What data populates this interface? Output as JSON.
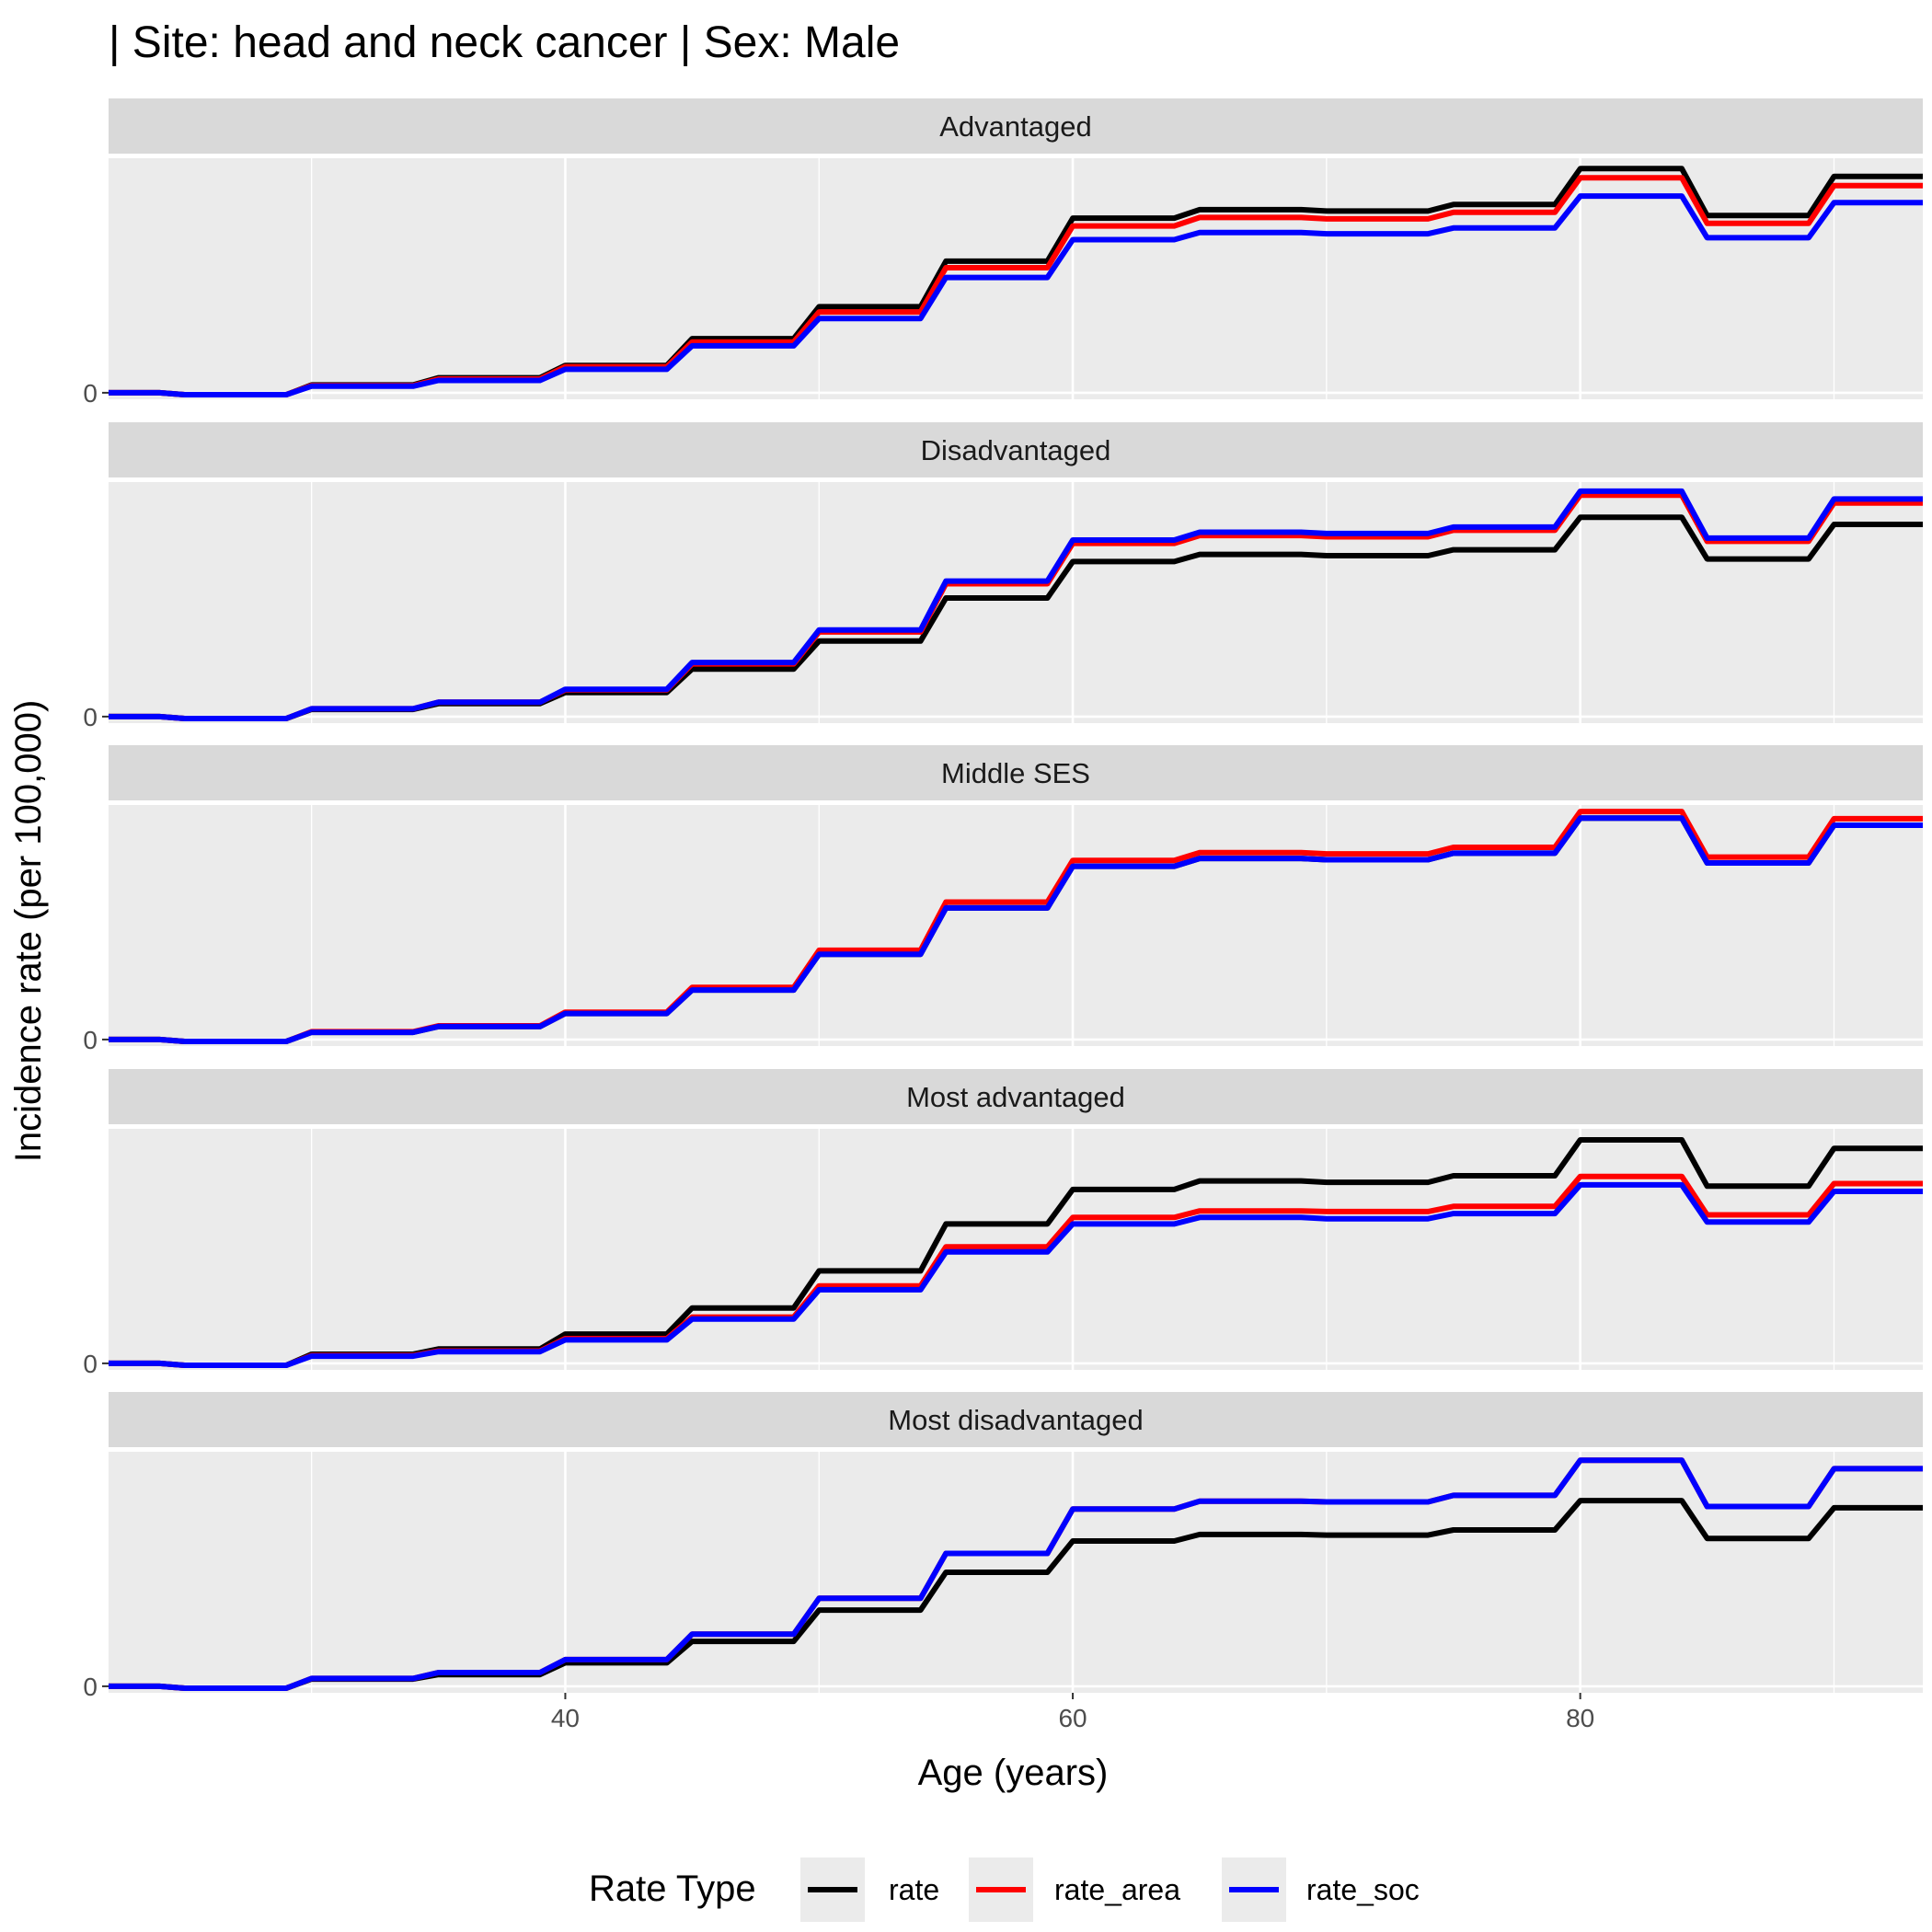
{
  "chart_data": {
    "type": "line",
    "title": "| Site: head and neck cancer | Sex: Male",
    "xlabel": "Age (years)",
    "ylabel": "Incidence rate (per 100,000)",
    "xlim": [
      22,
      93.5
    ],
    "x_ticks": [
      40,
      60,
      80
    ],
    "y_ticks": [
      0
    ],
    "y_tick_labels": [
      "0"
    ],
    "grid": true,
    "facet_layout": "stacked vertically, shared x-axis, free y-scales",
    "legend": {
      "title": "Rate Type",
      "position": "bottom",
      "entries": [
        {
          "label": "rate",
          "color": "#000000"
        },
        {
          "label": "rate_area",
          "color": "#ff0000"
        },
        {
          "label": "rate_soc",
          "color": "#0000ff"
        }
      ]
    },
    "x": [
      22,
      24,
      25,
      29,
      30,
      34,
      35,
      39,
      40,
      44,
      45,
      49,
      50,
      54,
      55,
      59,
      60,
      64,
      65,
      69,
      70,
      74,
      75,
      79,
      80,
      84,
      85,
      89,
      90,
      93.5
    ],
    "panels": [
      {
        "label": "Advantaged",
        "ylim": [
          -1,
          36
        ],
        "series": [
          {
            "name": "rate",
            "color": "#000000",
            "values": [
              0,
              0,
              -0.3,
              -0.3,
              1.2,
              1.2,
              2.3,
              2.3,
              4.2,
              4.2,
              8.3,
              8.3,
              13.2,
              13.2,
              20.2,
              20.2,
              26.8,
              26.8,
              28.1,
              28.1,
              27.9,
              27.9,
              28.9,
              28.9,
              34.4,
              34.4,
              27.2,
              27.2,
              33.2,
              33.2
            ]
          },
          {
            "name": "rate_area",
            "color": "#ff0000",
            "values": [
              0,
              0,
              -0.3,
              -0.3,
              1.1,
              1.1,
              2.1,
              2.1,
              4.0,
              4.0,
              7.8,
              7.8,
              12.4,
              12.4,
              19.2,
              19.2,
              25.6,
              25.6,
              26.9,
              26.9,
              26.7,
              26.7,
              27.7,
              27.7,
              33.0,
              33.0,
              26.0,
              26.0,
              31.8,
              31.8
            ]
          },
          {
            "name": "rate_soc",
            "color": "#0000ff",
            "values": [
              0,
              0,
              -0.3,
              -0.3,
              1.0,
              1.0,
              1.9,
              1.9,
              3.6,
              3.6,
              7.2,
              7.2,
              11.4,
              11.4,
              17.7,
              17.7,
              23.5,
              23.5,
              24.6,
              24.6,
              24.4,
              24.4,
              25.3,
              25.3,
              30.2,
              30.2,
              23.8,
              23.8,
              29.2,
              29.2
            ]
          }
        ]
      },
      {
        "label": "Disadvantaged",
        "ylim": [
          -1,
          36
        ],
        "series": [
          {
            "name": "rate",
            "color": "#000000",
            "values": [
              0,
              0,
              -0.3,
              -0.3,
              1.1,
              1.1,
              2.0,
              2.0,
              3.7,
              3.7,
              7.3,
              7.3,
              11.6,
              11.6,
              18.2,
              18.2,
              23.8,
              23.8,
              24.9,
              24.9,
              24.7,
              24.7,
              25.6,
              25.6,
              30.6,
              30.6,
              24.2,
              24.2,
              29.5,
              29.5
            ]
          },
          {
            "name": "rate_area",
            "color": "#ff0000",
            "values": [
              0,
              0,
              -0.3,
              -0.3,
              1.2,
              1.2,
              2.2,
              2.2,
              4.1,
              4.1,
              8.1,
              8.1,
              13.0,
              13.0,
              20.4,
              20.4,
              26.6,
              26.6,
              27.8,
              27.8,
              27.6,
              27.6,
              28.6,
              28.6,
              34.0,
              34.0,
              26.9,
              26.9,
              32.8,
              32.8
            ]
          },
          {
            "name": "rate_soc",
            "color": "#0000ff",
            "values": [
              0,
              0,
              -0.3,
              -0.3,
              1.2,
              1.2,
              2.2,
              2.2,
              4.2,
              4.2,
              8.3,
              8.3,
              13.3,
              13.3,
              20.8,
              20.8,
              27.1,
              27.1,
              28.3,
              28.3,
              28.1,
              28.1,
              29.1,
              29.1,
              34.6,
              34.6,
              27.4,
              27.4,
              33.4,
              33.4
            ]
          }
        ]
      },
      {
        "label": "Middle SES",
        "ylim": [
          -1,
          36
        ],
        "series": [
          {
            "name": "rate",
            "color": "#000000",
            "values": [
              0,
              0,
              -0.3,
              -0.3,
              1.1,
              1.1,
              2.0,
              2.0,
              4.0,
              4.0,
              7.6,
              7.6,
              13.1,
              13.1,
              20.2,
              20.2,
              26.6,
              26.6,
              27.8,
              27.8,
              27.6,
              27.6,
              28.6,
              28.6,
              34.0,
              34.0,
              27.1,
              27.1,
              32.9,
              32.9
            ]
          },
          {
            "name": "rate_area",
            "color": "#ff0000",
            "values": [
              0,
              0,
              -0.3,
              -0.3,
              1.2,
              1.2,
              2.1,
              2.1,
              4.2,
              4.2,
              8.0,
              8.0,
              13.7,
              13.7,
              21.1,
              21.1,
              27.5,
              27.5,
              28.7,
              28.7,
              28.5,
              28.5,
              29.5,
              29.5,
              35.0,
              35.0,
              28.0,
              28.0,
              33.9,
              33.9
            ]
          },
          {
            "name": "rate_soc",
            "color": "#0000ff",
            "values": [
              0,
              0,
              -0.3,
              -0.3,
              1.1,
              1.1,
              2.0,
              2.0,
              4.0,
              4.0,
              7.6,
              7.6,
              13.1,
              13.1,
              20.2,
              20.2,
              26.6,
              26.6,
              27.8,
              27.8,
              27.6,
              27.6,
              28.6,
              28.6,
              34.0,
              34.0,
              27.1,
              27.1,
              32.9,
              32.9
            ]
          }
        ]
      },
      {
        "label": "Most advantaged",
        "ylim": [
          -1,
          36
        ],
        "series": [
          {
            "name": "rate",
            "color": "#000000",
            "values": [
              0,
              0,
              -0.3,
              -0.3,
              1.4,
              1.4,
              2.2,
              2.2,
              4.5,
              4.5,
              8.5,
              8.5,
              14.2,
              14.2,
              21.4,
              21.4,
              26.7,
              26.7,
              28.0,
              28.0,
              27.8,
              27.8,
              28.8,
              28.8,
              34.3,
              34.3,
              27.2,
              27.2,
              33.0,
              33.0
            ]
          },
          {
            "name": "rate_area",
            "color": "#ff0000",
            "values": [
              0,
              0,
              -0.3,
              -0.3,
              1.2,
              1.2,
              1.9,
              1.9,
              3.8,
              3.8,
              7.1,
              7.1,
              11.9,
              11.9,
              17.9,
              17.9,
              22.4,
              22.4,
              23.4,
              23.4,
              23.3,
              23.3,
              24.1,
              24.1,
              28.7,
              28.7,
              22.8,
              22.8,
              27.6,
              27.6
            ]
          },
          {
            "name": "rate_soc",
            "color": "#0000ff",
            "values": [
              0,
              0,
              -0.3,
              -0.3,
              1.1,
              1.1,
              1.8,
              1.8,
              3.6,
              3.6,
              6.8,
              6.8,
              11.3,
              11.3,
              17.1,
              17.1,
              21.4,
              21.4,
              22.4,
              22.4,
              22.2,
              22.2,
              23.0,
              23.0,
              27.4,
              27.4,
              21.7,
              21.7,
              26.4,
              26.4
            ]
          }
        ]
      },
      {
        "label": "Most disadvantaged",
        "ylim": [
          -1,
          36
        ],
        "series": [
          {
            "name": "rate",
            "color": "#000000",
            "values": [
              0,
              0,
              -0.3,
              -0.3,
              1.1,
              1.1,
              1.8,
              1.8,
              3.6,
              3.6,
              6.9,
              6.9,
              11.7,
              11.7,
              17.5,
              17.5,
              22.3,
              22.3,
              23.3,
              23.3,
              23.2,
              23.2,
              24.0,
              24.0,
              28.5,
              28.5,
              22.7,
              22.7,
              27.4,
              27.4
            ]
          },
          {
            "name": "rate_area",
            "color": "#ff0000",
            "values": [
              0,
              0,
              -0.3,
              -0.3,
              1.2,
              1.2,
              2.1,
              2.1,
              4.1,
              4.1,
              8.0,
              8.0,
              13.5,
              13.5,
              20.4,
              20.4,
              27.2,
              27.2,
              28.4,
              28.4,
              28.3,
              28.3,
              29.3,
              29.3,
              34.7,
              34.7,
              27.6,
              27.6,
              33.4,
              33.4
            ]
          },
          {
            "name": "rate_soc",
            "color": "#0000ff",
            "values": [
              0,
              0,
              -0.3,
              -0.3,
              1.2,
              1.2,
              2.1,
              2.1,
              4.1,
              4.1,
              8.0,
              8.0,
              13.5,
              13.5,
              20.4,
              20.4,
              27.2,
              27.2,
              28.4,
              28.4,
              28.3,
              28.3,
              29.3,
              29.3,
              34.7,
              34.7,
              27.6,
              27.6,
              33.4,
              33.4
            ]
          }
        ]
      }
    ]
  }
}
